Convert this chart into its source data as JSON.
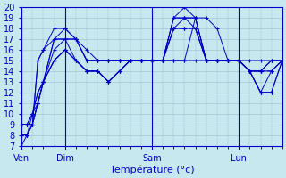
{
  "xlabel": "Température (°c)",
  "bg_color": "#c8e8f0",
  "grid_color": "#9bbccc",
  "line_color": "#0000cc",
  "xtick_labels": [
    "Ven",
    "Dim",
    "Sam",
    "Lun"
  ],
  "xtick_positions": [
    0,
    24,
    72,
    120
  ],
  "ylim": [
    7,
    20
  ],
  "xlim": [
    0,
    144
  ],
  "series": [
    {
      "x": [
        0,
        3,
        6,
        9,
        12,
        18,
        24,
        30,
        36,
        42,
        48,
        54,
        60,
        66,
        72,
        78,
        84,
        90,
        96,
        102,
        108,
        114,
        120,
        126,
        132,
        138,
        144
      ],
      "y": [
        9,
        9,
        9,
        15,
        16,
        18,
        18,
        17,
        15,
        15,
        15,
        15,
        15,
        15,
        15,
        15,
        15,
        15,
        15,
        15,
        15,
        15,
        15,
        15,
        15,
        15,
        15
      ],
      "dashed": false
    },
    {
      "x": [
        0,
        3,
        6,
        9,
        12,
        18,
        24,
        30,
        36,
        42,
        48,
        54,
        60,
        66,
        72,
        78,
        84,
        90,
        96,
        102,
        108,
        114,
        120,
        126,
        132,
        138,
        144
      ],
      "y": [
        8,
        8,
        9,
        15,
        16,
        17,
        17,
        17,
        15,
        15,
        15,
        15,
        15,
        15,
        15,
        15,
        15,
        15,
        19,
        19,
        18,
        15,
        15,
        14,
        14,
        14,
        15
      ],
      "dashed": false
    },
    {
      "x": [
        0,
        3,
        6,
        9,
        12,
        18,
        24,
        30,
        36,
        42,
        48,
        54,
        60,
        66,
        72,
        78,
        84,
        90,
        96,
        102,
        108,
        114,
        120,
        126,
        132,
        138,
        144
      ],
      "y": [
        9,
        9,
        10,
        11,
        13,
        17,
        17,
        17,
        15,
        15,
        15,
        15,
        15,
        15,
        15,
        15,
        19,
        19,
        19,
        15,
        15,
        15,
        15,
        14,
        12,
        14,
        15
      ],
      "dashed": false
    },
    {
      "x": [
        0,
        3,
        6,
        9,
        12,
        18,
        24,
        30,
        36,
        42,
        48,
        54,
        60,
        66,
        72,
        78,
        84,
        90,
        96,
        102,
        108,
        114,
        120,
        126,
        132,
        138,
        144
      ],
      "y": [
        8,
        8,
        10,
        12,
        13,
        17,
        18,
        17,
        16,
        15,
        15,
        15,
        15,
        15,
        15,
        15,
        19,
        20,
        19,
        15,
        15,
        15,
        15,
        14,
        14,
        15,
        15
      ],
      "dashed": false
    },
    {
      "x": [
        0,
        3,
        6,
        9,
        12,
        18,
        24,
        30,
        36,
        42,
        48,
        54,
        60,
        66,
        72,
        78,
        84,
        90,
        96,
        102,
        108,
        114,
        120,
        126,
        132,
        138,
        144
      ],
      "y": [
        8,
        8,
        9,
        11,
        13,
        16,
        17,
        15,
        14,
        14,
        13,
        14,
        15,
        15,
        15,
        15,
        19,
        19,
        19,
        15,
        15,
        15,
        15,
        14,
        12,
        12,
        15
      ],
      "dashed": false
    },
    {
      "x": [
        0,
        3,
        6,
        9,
        12,
        18,
        24,
        30,
        36,
        42,
        48,
        54,
        60,
        66,
        72,
        78,
        84,
        90,
        96,
        102,
        108,
        114,
        120,
        126,
        132,
        138,
        144
      ],
      "y": [
        9,
        9,
        10,
        12,
        13,
        15,
        16,
        15,
        14,
        14,
        13,
        14,
        15,
        15,
        15,
        15,
        18,
        19,
        18,
        15,
        15,
        15,
        15,
        14,
        14,
        15,
        15
      ],
      "dashed": false
    },
    {
      "x": [
        0,
        3,
        6,
        9,
        12,
        18,
        24,
        30,
        36,
        42,
        48,
        54,
        60,
        66,
        72,
        78,
        84,
        90,
        96,
        102,
        108,
        114,
        120,
        126,
        132,
        138,
        144
      ],
      "y": [
        9,
        9,
        9,
        11,
        13,
        15,
        16,
        15,
        14,
        14,
        13,
        14,
        15,
        15,
        15,
        15,
        18,
        18,
        18,
        15,
        15,
        15,
        15,
        14,
        14,
        14,
        15
      ],
      "dashed": true
    },
    {
      "x": [
        0,
        3,
        6,
        9,
        12,
        18,
        24,
        30,
        36,
        42,
        48,
        54,
        60,
        66,
        72,
        78,
        84,
        90,
        96,
        102,
        108,
        114,
        120,
        126,
        132,
        138,
        144
      ],
      "y": [
        7,
        8,
        9,
        11,
        13,
        15,
        16,
        15,
        14,
        14,
        13,
        14,
        15,
        15,
        15,
        15,
        18,
        18,
        18,
        15,
        15,
        15,
        15,
        14,
        12,
        12,
        15
      ],
      "dashed": false
    }
  ]
}
